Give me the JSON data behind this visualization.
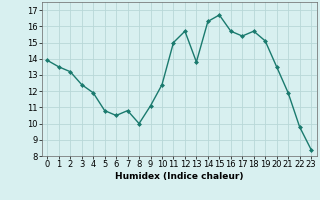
{
  "x": [
    0,
    1,
    2,
    3,
    4,
    5,
    6,
    7,
    8,
    9,
    10,
    11,
    12,
    13,
    14,
    15,
    16,
    17,
    18,
    19,
    20,
    21,
    22,
    23
  ],
  "y": [
    13.9,
    13.5,
    13.2,
    12.4,
    11.9,
    10.8,
    10.5,
    10.8,
    10.0,
    11.1,
    12.4,
    15.0,
    15.7,
    13.8,
    16.3,
    16.7,
    15.7,
    15.4,
    15.7,
    15.1,
    13.5,
    11.9,
    9.8,
    8.4
  ],
  "line_color": "#1a7a6e",
  "marker": "D",
  "marker_size": 2.0,
  "bg_color": "#d8f0f0",
  "grid_color": "#b8d8d8",
  "xlabel": "Humidex (Indice chaleur)",
  "ylim": [
    8,
    17.5
  ],
  "xlim": [
    -0.5,
    23.5
  ],
  "yticks": [
    8,
    9,
    10,
    11,
    12,
    13,
    14,
    15,
    16,
    17
  ],
  "xticks": [
    0,
    1,
    2,
    3,
    4,
    5,
    6,
    7,
    8,
    9,
    10,
    11,
    12,
    13,
    14,
    15,
    16,
    17,
    18,
    19,
    20,
    21,
    22,
    23
  ],
  "xlabel_fontsize": 6.5,
  "tick_fontsize": 6.0,
  "line_width": 1.0
}
